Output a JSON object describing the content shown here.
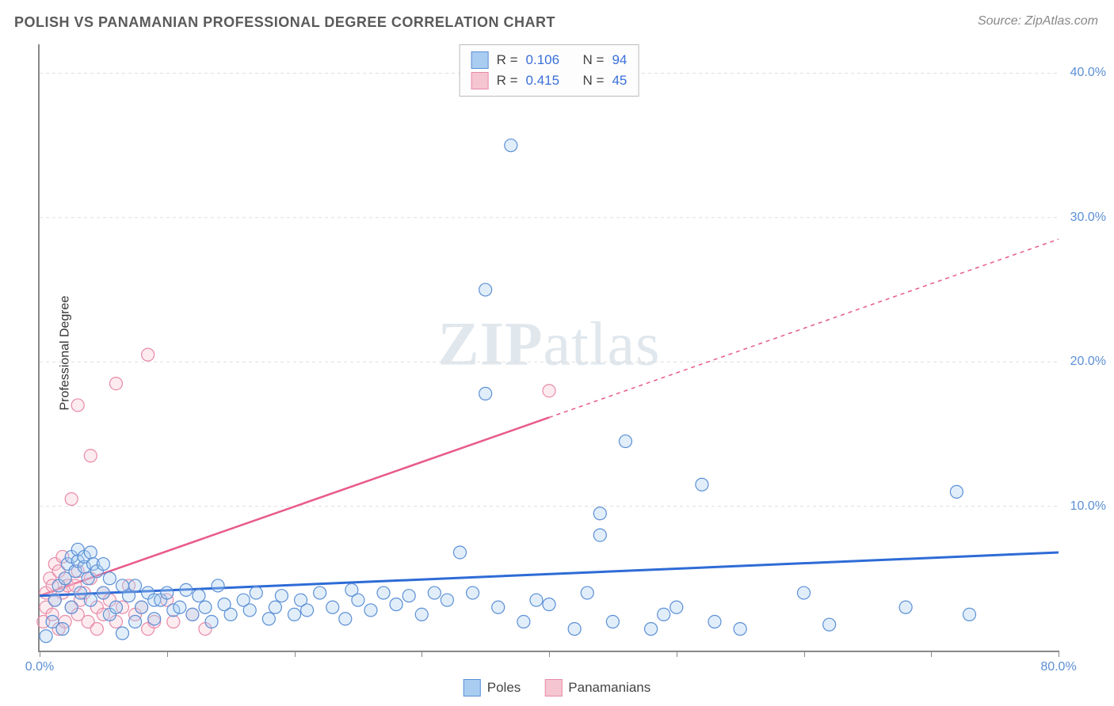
{
  "title": "POLISH VS PANAMANIAN PROFESSIONAL DEGREE CORRELATION CHART",
  "source": "Source: ZipAtlas.com",
  "y_axis_label": "Professional Degree",
  "watermark_zip": "ZIP",
  "watermark_atlas": "atlas",
  "chart": {
    "type": "scatter",
    "xlim": [
      0,
      80
    ],
    "ylim": [
      0,
      42
    ],
    "x_ticks": [
      0,
      10,
      20,
      30,
      40,
      50,
      60,
      70,
      80
    ],
    "x_tick_labels": {
      "0": "0.0%",
      "80": "80.0%"
    },
    "y_ticks": [
      10,
      20,
      30,
      40
    ],
    "y_tick_labels": {
      "10": "10.0%",
      "20": "20.0%",
      "30": "30.0%",
      "40": "40.0%"
    },
    "background_color": "#ffffff",
    "grid_color": "#dddddd",
    "grid_dash": "4,4",
    "axis_color": "#888888",
    "tick_label_color": "#5b8fd6",
    "title_color": "#5a5a5a",
    "title_fontsize": 18,
    "label_fontsize": 16,
    "marker_radius": 8,
    "marker_stroke_width": 1.2,
    "marker_fill_opacity": 0.35,
    "series": [
      {
        "name": "Poles",
        "fill": "#a9cdf1",
        "stroke": "#5b8fd6",
        "line_color": "#2e6bd6",
        "line_width": 3,
        "line_dash_extension": "4,4",
        "solid_until_x": 80,
        "R": "0.106",
        "N": "94",
        "trend": {
          "x1": 0,
          "y1": 3.8,
          "x2": 80,
          "y2": 6.8
        },
        "points": [
          [
            0.5,
            1.0
          ],
          [
            1.0,
            2.0
          ],
          [
            1.2,
            3.5
          ],
          [
            1.5,
            4.5
          ],
          [
            1.8,
            1.5
          ],
          [
            2.0,
            5.0
          ],
          [
            2.2,
            6.0
          ],
          [
            2.5,
            3.0
          ],
          [
            2.5,
            6.5
          ],
          [
            2.8,
            5.5
          ],
          [
            3.0,
            6.2
          ],
          [
            3.0,
            7.0
          ],
          [
            3.2,
            4.0
          ],
          [
            3.5,
            5.8
          ],
          [
            3.5,
            6.5
          ],
          [
            3.8,
            5.0
          ],
          [
            4.0,
            6.8
          ],
          [
            4.0,
            3.5
          ],
          [
            4.2,
            6.0
          ],
          [
            4.5,
            5.5
          ],
          [
            5.0,
            4.0
          ],
          [
            5.0,
            6.0
          ],
          [
            5.5,
            2.5
          ],
          [
            5.5,
            5.0
          ],
          [
            6.0,
            3.0
          ],
          [
            6.5,
            4.5
          ],
          [
            6.5,
            1.2
          ],
          [
            7.0,
            3.8
          ],
          [
            7.5,
            2.0
          ],
          [
            7.5,
            4.5
          ],
          [
            8.0,
            3.0
          ],
          [
            8.5,
            4.0
          ],
          [
            9.0,
            2.2
          ],
          [
            9.0,
            3.5
          ],
          [
            9.5,
            3.5
          ],
          [
            10.0,
            4.0
          ],
          [
            10.5,
            2.8
          ],
          [
            11.0,
            3.0
          ],
          [
            11.5,
            4.2
          ],
          [
            12.0,
            2.5
          ],
          [
            12.5,
            3.8
          ],
          [
            13.0,
            3.0
          ],
          [
            13.5,
            2.0
          ],
          [
            14.0,
            4.5
          ],
          [
            14.5,
            3.2
          ],
          [
            15.0,
            2.5
          ],
          [
            16.0,
            3.5
          ],
          [
            16.5,
            2.8
          ],
          [
            17.0,
            4.0
          ],
          [
            18.0,
            2.2
          ],
          [
            18.5,
            3.0
          ],
          [
            19.0,
            3.8
          ],
          [
            20.0,
            2.5
          ],
          [
            20.5,
            3.5
          ],
          [
            21.0,
            2.8
          ],
          [
            22.0,
            4.0
          ],
          [
            23.0,
            3.0
          ],
          [
            24.0,
            2.2
          ],
          [
            24.5,
            4.2
          ],
          [
            25.0,
            3.5
          ],
          [
            26.0,
            2.8
          ],
          [
            27.0,
            4.0
          ],
          [
            28.0,
            3.2
          ],
          [
            29.0,
            3.8
          ],
          [
            30.0,
            2.5
          ],
          [
            31.0,
            4.0
          ],
          [
            32.0,
            3.5
          ],
          [
            33.0,
            6.8
          ],
          [
            34.0,
            4.0
          ],
          [
            35.0,
            17.8
          ],
          [
            35.0,
            25.0
          ],
          [
            36.0,
            3.0
          ],
          [
            37.0,
            35.0
          ],
          [
            38.0,
            2.0
          ],
          [
            39.0,
            3.5
          ],
          [
            40.0,
            3.2
          ],
          [
            42.0,
            1.5
          ],
          [
            43.0,
            4.0
          ],
          [
            44.0,
            9.5
          ],
          [
            44.0,
            8.0
          ],
          [
            45.0,
            2.0
          ],
          [
            46.0,
            14.5
          ],
          [
            48.0,
            1.5
          ],
          [
            49.0,
            2.5
          ],
          [
            50.0,
            3.0
          ],
          [
            52.0,
            11.5
          ],
          [
            53.0,
            2.0
          ],
          [
            55.0,
            1.5
          ],
          [
            60.0,
            4.0
          ],
          [
            62.0,
            1.8
          ],
          [
            68.0,
            3.0
          ],
          [
            72.0,
            11.0
          ],
          [
            73.0,
            2.5
          ]
        ]
      },
      {
        "name": "Panamanians",
        "fill": "#f5c5d1",
        "stroke": "#e88aa8",
        "line_color": "#e85a8a",
        "line_width": 2.5,
        "line_dash_extension": "5,5",
        "solid_until_x": 40,
        "R": "0.415",
        "N": "45",
        "trend": {
          "x1": 0,
          "y1": 3.8,
          "x2": 80,
          "y2": 28.5
        },
        "points": [
          [
            0.3,
            2.0
          ],
          [
            0.5,
            3.0
          ],
          [
            0.5,
            4.0
          ],
          [
            0.8,
            5.0
          ],
          [
            1.0,
            2.5
          ],
          [
            1.0,
            4.5
          ],
          [
            1.2,
            6.0
          ],
          [
            1.2,
            3.5
          ],
          [
            1.5,
            5.5
          ],
          [
            1.5,
            1.5
          ],
          [
            1.8,
            6.5
          ],
          [
            1.8,
            4.0
          ],
          [
            2.0,
            5.0
          ],
          [
            2.0,
            2.0
          ],
          [
            2.2,
            4.5
          ],
          [
            2.5,
            3.0
          ],
          [
            2.5,
            10.5
          ],
          [
            2.8,
            4.5
          ],
          [
            3.0,
            5.5
          ],
          [
            3.0,
            2.5
          ],
          [
            3.0,
            17.0
          ],
          [
            3.2,
            3.5
          ],
          [
            3.5,
            4.0
          ],
          [
            3.8,
            2.0
          ],
          [
            4.0,
            5.0
          ],
          [
            4.0,
            13.5
          ],
          [
            4.5,
            3.0
          ],
          [
            4.5,
            1.5
          ],
          [
            5.0,
            4.0
          ],
          [
            5.0,
            2.5
          ],
          [
            5.5,
            3.5
          ],
          [
            6.0,
            2.0
          ],
          [
            6.0,
            18.5
          ],
          [
            6.5,
            3.0
          ],
          [
            7.0,
            4.5
          ],
          [
            7.5,
            2.5
          ],
          [
            8.0,
            3.0
          ],
          [
            8.5,
            1.5
          ],
          [
            8.5,
            20.5
          ],
          [
            9.0,
            2.0
          ],
          [
            10.0,
            3.5
          ],
          [
            10.5,
            2.0
          ],
          [
            12.0,
            2.5
          ],
          [
            13.0,
            1.5
          ],
          [
            40.0,
            18.0
          ]
        ]
      }
    ]
  },
  "stats_box": {
    "r_label": "R =",
    "n_label": "N ="
  },
  "legend": {
    "poles_label": "Poles",
    "panamanians_label": "Panamanians"
  }
}
